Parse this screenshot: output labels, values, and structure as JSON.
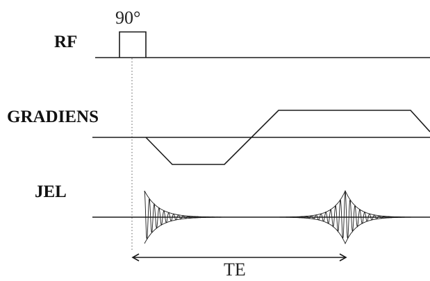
{
  "labels": {
    "rf": "RF",
    "gradient": "GRADIENS",
    "signal": "JEL"
  },
  "annotations": {
    "flip_angle": "90°",
    "echo_time": "TE"
  }
}
